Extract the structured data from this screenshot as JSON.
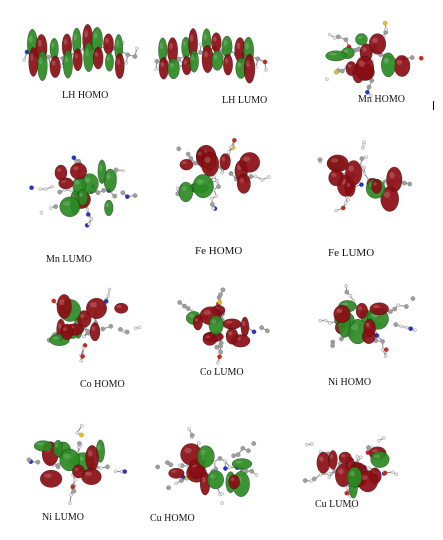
{
  "colors": {
    "lobe_positive": "#8b0d14",
    "lobe_negative": "#2a8a22",
    "carbon": "#9e9e9e",
    "hydrogen": "#e8e8e8",
    "nitrogen": "#2233cc",
    "oxygen": "#d0251b",
    "sulfur": "#e3c21b",
    "bond": "#8a8a8a"
  },
  "panels": [
    {
      "label": "LH HOMO"
    },
    {
      "label": "LH LUMO"
    },
    {
      "label": "Mn HOMO"
    },
    {
      "label": "Mn LUMO"
    },
    {
      "label": "Fe HOMO"
    },
    {
      "label": "Fe LUMO"
    },
    {
      "label": "Co HOMO"
    },
    {
      "label": "Co LUMO"
    },
    {
      "label": "Ni HOMO"
    },
    {
      "label": "Ni LUMO"
    },
    {
      "label": "Cu HOMO"
    },
    {
      "label": "Cu LUMO"
    }
  ]
}
